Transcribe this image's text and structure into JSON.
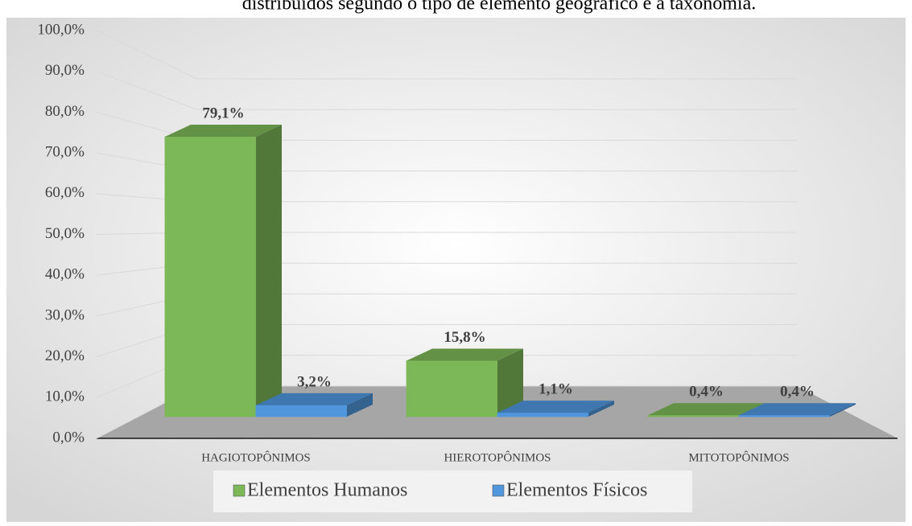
{
  "chart_data": {
    "type": "bar3d",
    "title": "distribuídos segundo o tipo de elemento geográfico e a taxonomia.",
    "categories": [
      "HAGIOTOPÔNIMOS",
      "HIEROTOPÔNIMOS",
      "MITOTOPÔNIMOS"
    ],
    "series": [
      {
        "name": "Elementos Humanos",
        "color": "#7cb758",
        "values": [
          79.1,
          15.8,
          0.4
        ],
        "value_labels": [
          "79,1%",
          "15,8%",
          "0,4%"
        ]
      },
      {
        "name": "Elementos Físicos",
        "color": "#4f96dc",
        "values": [
          3.2,
          1.1,
          0.4
        ],
        "value_labels": [
          "3,2%",
          "1,1%",
          "0,4%"
        ]
      }
    ],
    "ylim": [
      0,
      100
    ],
    "yticks": [
      {
        "value": 0,
        "label": "0,0%"
      },
      {
        "value": 10,
        "label": "10,0%"
      },
      {
        "value": 20,
        "label": "20,0%"
      },
      {
        "value": 30,
        "label": "30,0%"
      },
      {
        "value": 40,
        "label": "40,0%"
      },
      {
        "value": 50,
        "label": "50,0%"
      },
      {
        "value": 60,
        "label": "60,0%"
      },
      {
        "value": 70,
        "label": "70,0%"
      },
      {
        "value": 80,
        "label": "80,0%"
      },
      {
        "value": 90,
        "label": "90,0%"
      },
      {
        "value": 100,
        "label": "100,0%"
      }
    ],
    "grid": true,
    "legend": "bottom"
  }
}
